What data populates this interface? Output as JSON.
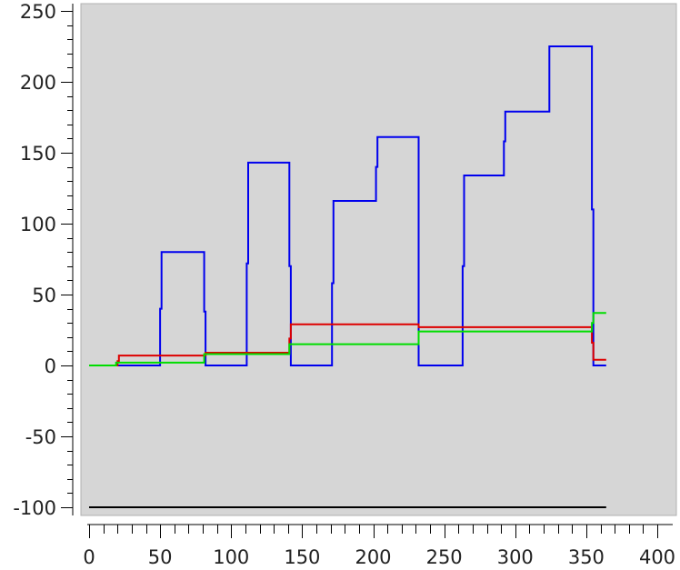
{
  "chart_data": {
    "type": "line",
    "title": "",
    "xlabel": "",
    "ylabel": "",
    "xlim": [
      0,
      400
    ],
    "ylim": [
      -100,
      250
    ],
    "x_ticks": [
      0,
      50,
      100,
      150,
      200,
      250,
      300,
      350,
      400
    ],
    "y_ticks": [
      250,
      200,
      150,
      100,
      50,
      0,
      -50,
      -100
    ],
    "grid": false,
    "legend": "none",
    "colors": {
      "plot_background": "#d6d6d6",
      "page_background": "#ffffff",
      "axis": "#000000"
    },
    "series": [
      {
        "color": "#0000ee",
        "points": [
          [
            0,
            0
          ],
          [
            50,
            0
          ],
          [
            50,
            40
          ],
          [
            51,
            40
          ],
          [
            51,
            80
          ],
          [
            81,
            80
          ],
          [
            81,
            38
          ],
          [
            82,
            38
          ],
          [
            82,
            0
          ],
          [
            111,
            0
          ],
          [
            111,
            72
          ],
          [
            112,
            72
          ],
          [
            112,
            143
          ],
          [
            141,
            143
          ],
          [
            141,
            70
          ],
          [
            142,
            70
          ],
          [
            142,
            0
          ],
          [
            171,
            0
          ],
          [
            171,
            58
          ],
          [
            172,
            58
          ],
          [
            172,
            116
          ],
          [
            202,
            116
          ],
          [
            202,
            140
          ],
          [
            203,
            140
          ],
          [
            203,
            161
          ],
          [
            232,
            161
          ],
          [
            232,
            0
          ],
          [
            263,
            0
          ],
          [
            263,
            70
          ],
          [
            264,
            70
          ],
          [
            264,
            134
          ],
          [
            292,
            134
          ],
          [
            292,
            158
          ],
          [
            293,
            158
          ],
          [
            293,
            179
          ],
          [
            324,
            179
          ],
          [
            324,
            225
          ],
          [
            354,
            225
          ],
          [
            354,
            110
          ],
          [
            355,
            110
          ],
          [
            355,
            0
          ],
          [
            364,
            0
          ]
        ]
      },
      {
        "color": "#dd0000",
        "points": [
          [
            0,
            0
          ],
          [
            20,
            0
          ],
          [
            20,
            3
          ],
          [
            21,
            3
          ],
          [
            21,
            7
          ],
          [
            82,
            7
          ],
          [
            82,
            9
          ],
          [
            141,
            9
          ],
          [
            141,
            19
          ],
          [
            142,
            19
          ],
          [
            142,
            29
          ],
          [
            232,
            29
          ],
          [
            232,
            27
          ],
          [
            354,
            27
          ],
          [
            354,
            16
          ],
          [
            355,
            16
          ],
          [
            355,
            4
          ],
          [
            364,
            4
          ]
        ]
      },
      {
        "color": "#00dd00",
        "points": [
          [
            0,
            0
          ],
          [
            19,
            0
          ],
          [
            19,
            2
          ],
          [
            81,
            2
          ],
          [
            81,
            8
          ],
          [
            141,
            8
          ],
          [
            141,
            15
          ],
          [
            232,
            15
          ],
          [
            232,
            24
          ],
          [
            354,
            24
          ],
          [
            354,
            30
          ],
          [
            355,
            30
          ],
          [
            355,
            37
          ],
          [
            364,
            37
          ]
        ]
      },
      {
        "color": "#000000",
        "points": [
          [
            0,
            -100
          ],
          [
            364,
            -100
          ]
        ]
      }
    ]
  }
}
